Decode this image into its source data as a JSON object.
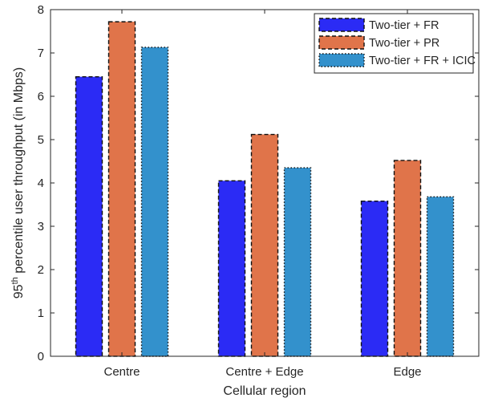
{
  "chart_data": {
    "type": "bar",
    "title": "",
    "xlabel": "Cellular region",
    "ylabel": {
      "base": "95",
      "sup": "th",
      "rest": " percentile user throughput (in Mbps)"
    },
    "ylim": [
      0,
      8
    ],
    "yticks": [
      "0",
      "1",
      "2",
      "3",
      "4",
      "5",
      "6",
      "7",
      "8"
    ],
    "categories": [
      "Centre",
      "Centre + Edge",
      "Edge"
    ],
    "series": [
      {
        "name": "Two-tier + FR",
        "values": [
          6.45,
          4.05,
          3.58
        ],
        "color": "#2b2bf5",
        "border": "dashed"
      },
      {
        "name": "Two-tier + PR",
        "values": [
          7.72,
          5.12,
          4.52
        ],
        "color": "#e0744a",
        "border": "dashed"
      },
      {
        "name": "Two-tier + FR + ICIC",
        "values": [
          7.13,
          4.35,
          3.68
        ],
        "color": "#3391cc",
        "border": "dotted"
      }
    ],
    "legend_position": "top-right",
    "grid": false
  }
}
